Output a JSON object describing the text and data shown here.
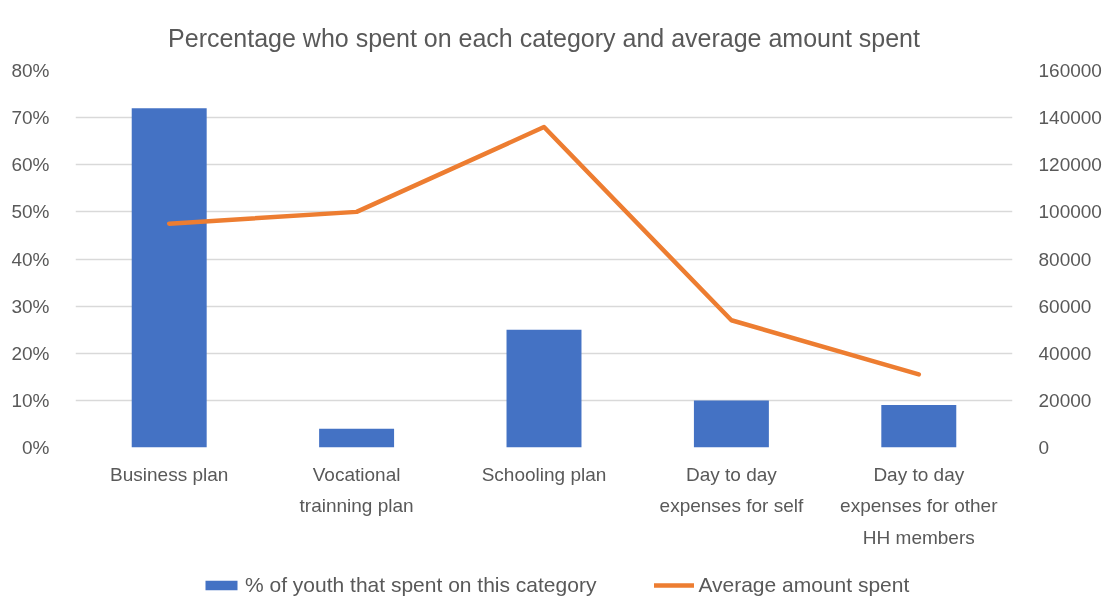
{
  "chart_data": {
    "type": "bar",
    "title": "Percentage who spent on each category and average amount spent",
    "categories": [
      "Business plan",
      "Vocational trainning plan",
      "Schooling plan",
      "Day to day expenses for self",
      "Day to day expenses for other HH members"
    ],
    "series": [
      {
        "name": "% of youth that spent on this category",
        "color": "#4472c4",
        "values": [
          72,
          4,
          25,
          10,
          9
        ]
      },
      {
        "name": "Average amount spent",
        "type": "line",
        "axis": "y2",
        "color": "#ed7d31",
        "values": [
          95000,
          100000,
          136000,
          54000,
          31000
        ]
      }
    ],
    "ylim": [
      0,
      80
    ],
    "yticks": [
      {
        "value": 0,
        "label": "0%"
      },
      {
        "value": 10,
        "label": "10%"
      },
      {
        "value": 20,
        "label": "20%"
      },
      {
        "value": 30,
        "label": "30%"
      },
      {
        "value": 40,
        "label": "40%"
      },
      {
        "value": 50,
        "label": "50%"
      },
      {
        "value": 60,
        "label": "60%"
      },
      {
        "value": 70,
        "label": "70%"
      },
      {
        "value": 80,
        "label": "80%"
      }
    ],
    "y2lim": [
      0,
      160000
    ],
    "y2ticks": [
      0,
      20000,
      40000,
      60000,
      80000,
      100000,
      120000,
      140000,
      160000
    ],
    "grid": "y",
    "legend": "bottom",
    "line_style": "solid"
  }
}
